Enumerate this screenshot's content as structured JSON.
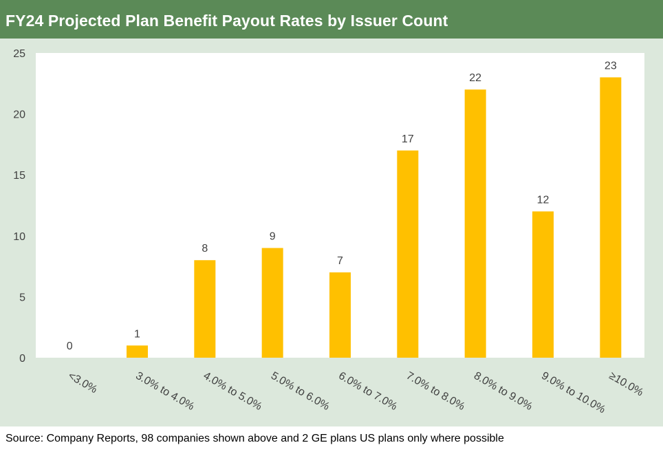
{
  "title": "FY24 Projected Plan Benefit Payout Rates by Issuer Count",
  "source": "Source: Company Reports, 98 companies shown above and 2 GE plans US plans only where possible",
  "colors": {
    "title_bg": "#5b8a57",
    "chart_bg": "#dce8dc",
    "plot_bg": "#ffffff",
    "bar": "#ffc000"
  },
  "chart_data": {
    "type": "bar",
    "title": "FY24 Projected Plan Benefit Payout Rates by Issuer Count",
    "categories": [
      "<3.0%",
      "3.0% to 4.0%",
      "4.0% to 5.0%",
      "5.0% to 6.0%",
      "6.0% to 7.0%",
      "7.0% to 8.0%",
      "8.0% to 9.0%",
      "9.0% to 10.0%",
      "≥10.0%"
    ],
    "values": [
      0,
      1,
      8,
      9,
      7,
      17,
      22,
      12,
      23
    ],
    "ylim": [
      0,
      25
    ],
    "yticks": [
      0,
      5,
      10,
      15,
      20,
      25
    ],
    "xlabel": "",
    "ylabel": "",
    "data_labels": true,
    "grid": false,
    "legend": "none"
  }
}
